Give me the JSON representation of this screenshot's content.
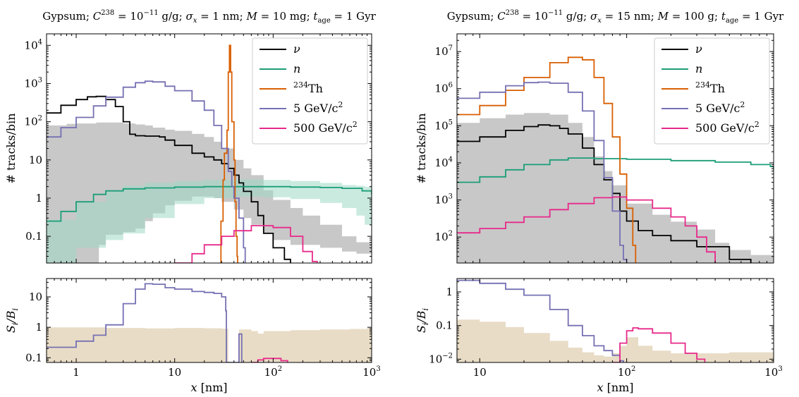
{
  "colors": {
    "nu": "#000000",
    "n": "#1b9e77",
    "th234": "#d95f02",
    "dm5": "#7570b3",
    "dm500": "#e7298a",
    "background_band": "#c8c8c8",
    "neutron_band": "#9fd9c6",
    "ratio_fill": "#e8dcc6"
  },
  "chart_data": [
    {
      "type": "line",
      "title": "Gypsum; C238 = 10^-11 g/g; σx = 1 nm; M = 10 mg; t_age = 1 Gyr",
      "title_parts": {
        "prefix": "Gypsum;",
        "C_sym": "C",
        "C_sup": "238",
        "C_eq": "= 10",
        "C_exp": "−11",
        "C_unit": "g/g;",
        "sigma_sym": "σ",
        "sigma_sub": "x",
        "sigma_val": "= 1 nm;",
        "M_sym": "M",
        "M_val": "= 10 mg;",
        "t_sym": "t",
        "t_sub": "age",
        "t_val": "= 1 Gyr"
      },
      "xscale": "log",
      "yscale": "log",
      "xlim": [
        0.5,
        1000
      ],
      "ylim": [
        0.02,
        20000
      ],
      "ylabel": "# tracks/bin",
      "xticks": [
        "1",
        "10",
        "10^2",
        "10^3"
      ],
      "yticks": [
        "0.1",
        "1",
        "10",
        "10^2",
        "10^3",
        "10^4"
      ],
      "legend": {
        "placement": "top-right",
        "entries": [
          {
            "key": "nu",
            "label": "ν"
          },
          {
            "key": "n",
            "label": "n"
          },
          {
            "key": "th234",
            "label": "Th",
            "sup": "234"
          },
          {
            "key": "dm5",
            "label": "GeV/c",
            "num": "5",
            "sup": "2"
          },
          {
            "key": "dm500",
            "label": "GeV/c",
            "num": "500",
            "sup": "2"
          }
        ]
      },
      "background_band": [
        [
          0.5,
          0.02,
          80
        ],
        [
          0.8,
          0.02,
          88
        ],
        [
          1,
          0.02,
          90
        ],
        [
          1.6,
          0.02,
          95
        ],
        [
          1.7,
          0.06,
          95
        ],
        [
          2.0,
          0.11,
          95
        ],
        [
          2.5,
          0.11,
          95
        ],
        [
          3,
          0.13,
          90
        ],
        [
          4,
          0.16,
          85
        ],
        [
          5,
          0.25,
          80
        ],
        [
          6,
          0.4,
          70
        ],
        [
          8,
          0.65,
          62
        ],
        [
          10,
          0.85,
          58
        ],
        [
          15,
          1.1,
          48
        ],
        [
          20,
          1.1,
          40
        ],
        [
          25,
          1.0,
          30
        ],
        [
          30,
          0.8,
          20
        ],
        [
          40,
          0.5,
          10
        ],
        [
          50,
          0.3,
          6
        ],
        [
          60,
          0.2,
          4
        ],
        [
          80,
          0.12,
          1.6
        ],
        [
          100,
          0.08,
          0.9
        ],
        [
          150,
          0.06,
          0.55
        ],
        [
          200,
          0.06,
          0.35
        ],
        [
          300,
          0.05,
          0.2
        ],
        [
          500,
          0.04,
          0.1
        ],
        [
          700,
          0.035,
          0.07
        ],
        [
          1000,
          0.03,
          0.055
        ]
      ],
      "neutron_band": [
        [
          0.5,
          0.02,
          0.27
        ],
        [
          1,
          0.05,
          0.8
        ],
        [
          2,
          0.08,
          1.6
        ],
        [
          3,
          0.12,
          2.1
        ],
        [
          5,
          0.3,
          2.5
        ],
        [
          10,
          0.7,
          2.8
        ],
        [
          20,
          1.0,
          3.0
        ],
        [
          40,
          1.1,
          3.1
        ],
        [
          80,
          1.05,
          3.0
        ],
        [
          150,
          0.95,
          2.8
        ],
        [
          300,
          0.75,
          2.5
        ],
        [
          500,
          0.55,
          2.2
        ],
        [
          700,
          0.35,
          2.1
        ],
        [
          850,
          0.2,
          2.0
        ],
        [
          1000,
          0.07,
          1.9
        ]
      ],
      "series": [
        {
          "key": "nu",
          "name": "ν",
          "x": [
            0.5,
            0.7,
            1,
            1.3,
            1.6,
            2,
            2.5,
            3,
            3.5,
            4,
            5,
            6,
            7,
            8,
            10,
            15,
            20,
            25,
            30,
            35,
            40,
            45,
            50,
            60,
            70,
            80,
            100,
            130,
            150
          ],
          "y": [
            170,
            270,
            380,
            450,
            460,
            380,
            250,
            100,
            47,
            43,
            42,
            42,
            40,
            33,
            24,
            15,
            12,
            10,
            8,
            6,
            4,
            2.5,
            1.5,
            0.8,
            0.35,
            0.12,
            0.05,
            0.025,
            0.02
          ]
        },
        {
          "key": "n",
          "name": "n",
          "x": [
            0.5,
            0.7,
            1,
            1.5,
            2,
            3,
            5,
            10,
            20,
            40,
            80,
            150,
            300,
            500,
            800,
            1000
          ],
          "y": [
            0.25,
            0.45,
            0.8,
            1.25,
            1.55,
            1.75,
            1.85,
            1.95,
            2.0,
            2.0,
            2.0,
            1.95,
            1.9,
            1.8,
            1.55,
            1.25
          ]
        },
        {
          "key": "th234",
          "name": "Th",
          "x": [
            29,
            29.5,
            31,
            32,
            34,
            35,
            36,
            36.5,
            37,
            38,
            40,
            41,
            42,
            43,
            43.5
          ],
          "y": [
            0.02,
            0.25,
            3,
            15,
            60,
            2000,
            10000,
            10000,
            2000,
            100,
            10,
            0.8,
            0.1,
            0.03,
            0.02
          ]
        },
        {
          "key": "dm5",
          "name": "5 GeV/c2",
          "x": [
            0.5,
            0.7,
            1,
            1.5,
            2,
            3,
            4,
            5,
            6,
            8,
            10,
            15,
            20,
            25,
            30,
            35,
            38,
            40,
            45,
            50,
            52
          ],
          "y": [
            40,
            70,
            130,
            260,
            440,
            800,
            1050,
            1150,
            1100,
            850,
            650,
            350,
            200,
            80,
            20,
            5,
            2,
            1,
            0.3,
            0.05,
            0.02
          ]
        },
        {
          "key": "dm500",
          "name": "500 GeV/c2",
          "x": [
            10,
            15,
            20,
            30,
            40,
            60,
            80,
            100,
            150,
            200,
            250,
            280
          ],
          "y": [
            0.02,
            0.035,
            0.06,
            0.1,
            0.14,
            0.19,
            0.19,
            0.17,
            0.1,
            0.04,
            0.022,
            0.02
          ]
        }
      ],
      "ratio": {
        "ylabel": "Si/Bi",
        "ylabel_parts": {
          "S": "S",
          "S_sub": "i",
          "B": "/B",
          "B_sub": "i"
        },
        "yscale": "log",
        "ylim": [
          0.07,
          40
        ],
        "xlabel": "x [nm]",
        "xlabel_parts": {
          "sym": "x",
          "unit": "[nm]"
        },
        "yticks": [
          "0.1",
          "1",
          "10"
        ],
        "fill": [
          [
            0.5,
            1.0
          ],
          [
            1,
            1.0
          ],
          [
            2,
            0.95
          ],
          [
            5,
            0.92
          ],
          [
            10,
            0.95
          ],
          [
            20,
            0.93
          ],
          [
            30,
            0.9
          ],
          [
            35,
            0.07
          ],
          [
            44,
            0.07
          ],
          [
            45,
            0.85
          ],
          [
            60,
            0.75
          ],
          [
            70,
            0.62
          ],
          [
            80,
            0.75
          ],
          [
            150,
            0.8
          ],
          [
            300,
            0.85
          ],
          [
            600,
            0.88
          ],
          [
            900,
            0.95
          ]
        ],
        "series": [
          {
            "key": "dm5",
            "x": [
              0.5,
              1,
              1.5,
              2,
              3,
              4,
              5,
              6,
              8,
              10,
              15,
              20,
              25,
              30,
              33,
              33.5,
              42,
              45,
              46,
              48
            ],
            "y": [
              0.22,
              0.35,
              0.55,
              1.2,
              6,
              18,
              27,
              26,
              20,
              18,
              15,
              14,
              13,
              10,
              3.5,
              0.07,
              0.07,
              0.6,
              0.6,
              0.07
            ]
          },
          {
            "key": "dm500",
            "x": [
              60,
              70,
              80,
              100,
              120,
              140
            ],
            "y": [
              0.07,
              0.085,
              0.095,
              0.095,
              0.08,
              0.07
            ]
          }
        ]
      }
    },
    {
      "type": "line",
      "title": "Gypsum; C238 = 10^-11 g/g; σx = 15 nm; M = 100 g; t_age = 1 Gyr",
      "title_parts": {
        "prefix": "Gypsum;",
        "C_sym": "C",
        "C_sup": "238",
        "C_eq": "= 10",
        "C_exp": "−11",
        "C_unit": "g/g;",
        "sigma_sym": "σ",
        "sigma_sub": "x",
        "sigma_val": "= 15 nm;",
        "M_sym": "M",
        "M_val": "= 100 g;",
        "t_sym": "t",
        "t_sub": "age",
        "t_val": "= 1 Gyr"
      },
      "xscale": "log",
      "yscale": "log",
      "xlim": [
        7,
        1000
      ],
      "ylim": [
        20,
        30000000
      ],
      "ylabel": "# tracks/bin",
      "xticks": [
        "10",
        "10^2",
        "10^3"
      ],
      "yticks": [
        "10^2",
        "10^3",
        "10^4",
        "10^5",
        "10^6",
        "10^7"
      ],
      "legend": {
        "placement": "top-right",
        "entries": [
          {
            "key": "nu",
            "label": "ν"
          },
          {
            "key": "n",
            "label": "n"
          },
          {
            "key": "th234",
            "label": "Th",
            "sup": "234"
          },
          {
            "key": "dm5",
            "label": "GeV/c",
            "num": "5",
            "sup": "2"
          },
          {
            "key": "dm500",
            "label": "GeV/c",
            "num": "500",
            "sup": "2"
          }
        ]
      },
      "background_band": [
        [
          7,
          20,
          120000
        ],
        [
          10,
          20,
          160000
        ],
        [
          15,
          20,
          200000
        ],
        [
          20,
          20,
          220000
        ],
        [
          30,
          20,
          200000
        ],
        [
          40,
          20,
          120000
        ],
        [
          50,
          20,
          50000
        ],
        [
          60,
          20,
          15000
        ],
        [
          70,
          20,
          6000
        ],
        [
          80,
          20,
          2500
        ],
        [
          100,
          20,
          800
        ],
        [
          150,
          20,
          400
        ],
        [
          200,
          20,
          260
        ],
        [
          300,
          20,
          160
        ],
        [
          400,
          20,
          70
        ],
        [
          500,
          20,
          45
        ],
        [
          700,
          20,
          33
        ],
        [
          1000,
          20,
          33
        ]
      ],
      "series": [
        {
          "key": "nu",
          "name": "ν",
          "x": [
            7,
            10,
            15,
            20,
            25,
            30,
            35,
            40,
            50,
            60,
            70,
            80,
            90,
            100,
            120,
            150,
            200,
            300,
            500,
            700
          ],
          "y": [
            38000,
            50000,
            75000,
            95000,
            105000,
            100000,
            85000,
            60000,
            25000,
            9000,
            3500,
            1500,
            500,
            270,
            150,
            110,
            80,
            55,
            25,
            20
          ]
        },
        {
          "key": "n",
          "name": "n",
          "x": [
            7,
            10,
            15,
            20,
            30,
            40,
            60,
            100,
            200,
            400,
            700,
            950,
            1000
          ],
          "y": [
            3000,
            4200,
            6500,
            9000,
            12000,
            13500,
            13000,
            12500,
            11500,
            10500,
            9000,
            8000,
            6500
          ]
        },
        {
          "key": "th234",
          "name": "Th",
          "x": [
            7,
            10,
            15,
            20,
            30,
            40,
            45,
            50,
            60,
            70,
            80,
            90,
            100,
            110,
            115
          ],
          "y": [
            200000,
            350000,
            900000,
            2000000,
            5000000,
            7000000,
            7000000,
            6000000,
            2000000,
            400000,
            50000,
            5000,
            600,
            60,
            20
          ]
        },
        {
          "key": "dm5",
          "name": "5 GeV/c2",
          "x": [
            7,
            10,
            15,
            20,
            25,
            30,
            40,
            50,
            60,
            70,
            80,
            90,
            95,
            100
          ],
          "y": [
            550000,
            800000,
            1200000,
            1450000,
            1500000,
            1400000,
            800000,
            250000,
            40000,
            4000,
            500,
            60,
            25,
            20
          ]
        },
        {
          "key": "dm500",
          "name": "500 GeV/c2",
          "x": [
            7,
            10,
            15,
            20,
            30,
            40,
            60,
            80,
            100,
            150,
            200,
            250,
            300,
            350,
            400
          ],
          "y": [
            130,
            170,
            250,
            350,
            550,
            800,
            1150,
            1200,
            1000,
            600,
            350,
            200,
            100,
            40,
            20
          ]
        }
      ],
      "ratio": {
        "ylabel": "Si/Bi",
        "ylabel_parts": {
          "S": "S",
          "S_sub": "i",
          "B": "/B",
          "B_sub": "i"
        },
        "yscale": "log",
        "ylim": [
          0.008,
          2.5
        ],
        "xlabel": "x [nm]",
        "xlabel_parts": {
          "sym": "x",
          "unit": "[nm]"
        },
        "yticks": [
          "10^-2",
          "0.1",
          "1"
        ],
        "fill": [
          [
            7,
            0.15
          ],
          [
            10,
            0.13
          ],
          [
            15,
            0.09
          ],
          [
            20,
            0.06
          ],
          [
            30,
            0.035
          ],
          [
            40,
            0.022
          ],
          [
            50,
            0.016
          ],
          [
            60,
            0.013
          ],
          [
            70,
            0.012
          ],
          [
            80,
            0.015
          ],
          [
            90,
            0.025
          ],
          [
            100,
            0.045
          ],
          [
            120,
            0.025
          ],
          [
            150,
            0.018
          ],
          [
            200,
            0.015
          ],
          [
            300,
            0.015
          ],
          [
            500,
            0.016
          ],
          [
            1000,
            0.017
          ]
        ],
        "series": [
          {
            "key": "dm5",
            "x": [
              7,
              10,
              15,
              20,
              30,
              40,
              50,
              60,
              70,
              80,
              90,
              95
            ],
            "y": [
              2.2,
              1.8,
              1.2,
              0.8,
              0.3,
              0.1,
              0.05,
              0.025,
              0.018,
              0.013,
              0.009,
              0.008
            ]
          },
          {
            "key": "dm500",
            "x": [
              80,
              90,
              100,
              110,
              120,
              150,
              200,
              250,
              300,
              340
            ],
            "y": [
              0.008,
              0.03,
              0.07,
              0.085,
              0.08,
              0.06,
              0.03,
              0.015,
              0.01,
              0.008
            ]
          }
        ]
      }
    }
  ]
}
